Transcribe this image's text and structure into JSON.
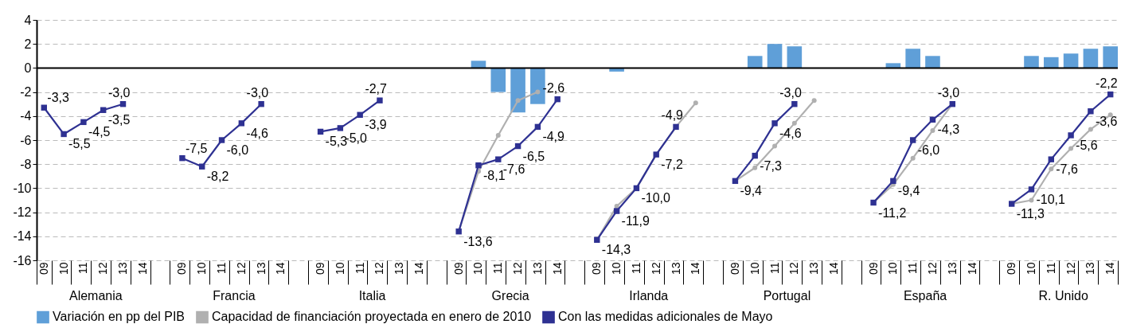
{
  "chart_data": {
    "type": "bar",
    "categories": [
      "09",
      "10",
      "11",
      "12",
      "13",
      "14",
      null,
      "09",
      "10",
      "11",
      "12",
      "13",
      "14",
      null,
      "09",
      "10",
      "11",
      "12",
      "13",
      "14",
      null,
      "09",
      "10",
      "11",
      "12",
      "13",
      "14",
      null,
      "09",
      "10",
      "11",
      "12",
      "13",
      "14",
      null,
      "09",
      "10",
      "11",
      "12",
      "13",
      "14",
      null,
      "09",
      "10",
      "11",
      "12",
      "13",
      "14",
      null,
      "09",
      "10",
      "11",
      "12",
      "13",
      "14"
    ],
    "series": [
      {
        "name": "Variación en pp del PIB",
        "color": "#5f9fd8",
        "values": [
          null,
          null,
          null,
          null,
          null,
          null,
          null,
          null,
          null,
          null,
          null,
          null,
          null,
          null,
          null,
          null,
          null,
          null,
          null,
          null,
          null,
          null,
          0.6,
          -2.0,
          -3.7,
          -3.0,
          null,
          null,
          null,
          -0.3,
          null,
          null,
          null,
          null,
          null,
          null,
          1.0,
          2.0,
          1.8,
          null,
          null,
          null,
          null,
          0.4,
          1.6,
          1.0,
          null,
          null,
          null,
          null,
          1.0,
          0.9,
          1.2,
          1.6,
          1.8
        ]
      },
      {
        "name": "Capacidad de financiación proyectada en enero de 2010",
        "type": "line",
        "marker": "circle",
        "color": "#b0b0b0",
        "values": [
          null,
          null,
          null,
          null,
          null,
          null,
          null,
          null,
          null,
          null,
          null,
          null,
          null,
          null,
          null,
          null,
          null,
          null,
          null,
          null,
          null,
          -13.6,
          -8.6,
          -5.6,
          -2.7,
          -2.0,
          null,
          null,
          -14.3,
          -11.5,
          -10.0,
          -7.2,
          -4.9,
          -2.9,
          null,
          -9.4,
          -8.3,
          -6.5,
          -4.6,
          -2.7,
          null,
          null,
          -11.2,
          -9.7,
          -7.5,
          -5.2,
          -3.0,
          null,
          null,
          -11.3,
          -11.0,
          -8.4,
          -6.7,
          -5.1,
          -3.9
        ]
      },
      {
        "name": "Con las medidas adicionales de Mayo",
        "type": "line",
        "marker": "square",
        "color": "#2e3192",
        "values": [
          -3.3,
          -5.5,
          -4.5,
          -3.5,
          -3.0,
          null,
          null,
          -7.5,
          -8.2,
          -6.0,
          -4.6,
          -3.0,
          null,
          null,
          -5.3,
          -5.0,
          -3.9,
          -2.7,
          null,
          null,
          null,
          -13.6,
          -8.1,
          -7.6,
          -6.5,
          -4.9,
          -2.6,
          null,
          -14.3,
          -11.9,
          -10.0,
          -7.2,
          -4.9,
          null,
          null,
          -9.4,
          -7.3,
          -4.6,
          -3.0,
          null,
          null,
          null,
          -11.2,
          -9.4,
          -6.0,
          -4.3,
          -3.0,
          null,
          null,
          -11.3,
          -10.1,
          -7.6,
          -5.6,
          -3.6,
          -2.2
        ],
        "value_labels": [
          "-3,3",
          "-5,5",
          "-4,5",
          "-3,5",
          "-3,0",
          null,
          null,
          "-7,5",
          "-8,2",
          "-6,0",
          "-4,6",
          "-3,0",
          null,
          null,
          "-5,3",
          "-5,0",
          "-3,9",
          "-2,7",
          null,
          null,
          null,
          "-13,6",
          "-8,1",
          "-7,6",
          "-6,5",
          "-4,9",
          "-2,6",
          null,
          "-14,3",
          "-11,9",
          "-10,0",
          "-7,2",
          "-4,9",
          null,
          null,
          "-9,4",
          "-7,3",
          "-4,6",
          "-3,0",
          null,
          null,
          null,
          "-11,2",
          "-9,4",
          "-6,0",
          "-4,3",
          "-3,0",
          null,
          null,
          "-11,3",
          "-10,1",
          "-7,6",
          "-5,6",
          "-3,6",
          "-2,2"
        ]
      }
    ],
    "annotations": [
      "Alemania",
      "Francia",
      "Italia",
      "Grecia",
      "Irlanda",
      "Portugal",
      "España",
      "R. Unido"
    ],
    "ylim": [
      -16,
      4
    ],
    "yticks": [
      -16,
      -14,
      -12,
      -10,
      -8,
      -6,
      -4,
      -2,
      0,
      2,
      4
    ],
    "grid": "y",
    "legend": "bottom"
  }
}
